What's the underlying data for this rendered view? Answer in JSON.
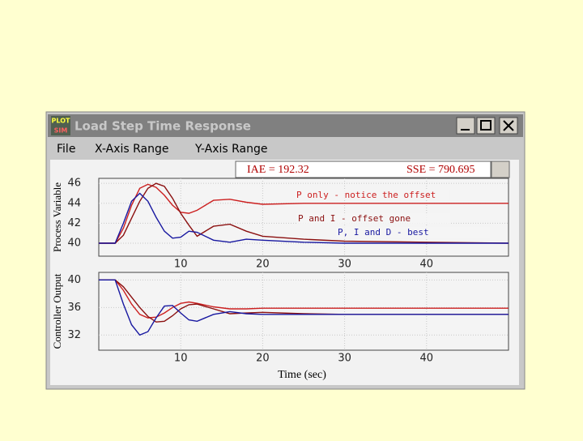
{
  "window": {
    "icon_text": [
      "PLOT",
      "SIM"
    ],
    "title": "Load Step Time Response",
    "menu": [
      "File",
      "X-Axis Range",
      "Y-Axis Range"
    ],
    "stats": [
      "IAE = 192.32",
      "SSE = 790.695"
    ]
  },
  "chart_data": [
    {
      "type": "line",
      "ylabel": "Process Variable",
      "x": [
        0,
        2,
        3,
        4,
        5,
        6,
        7,
        8,
        9,
        10,
        11,
        12,
        14,
        16,
        18,
        20,
        25,
        30,
        40,
        50
      ],
      "xlim": [
        0,
        50
      ],
      "xticks": [
        10,
        20,
        30,
        40
      ],
      "ylim": [
        38.7,
        46.5
      ],
      "yticks": [
        40,
        42,
        44,
        46
      ],
      "grid": true,
      "series": [
        {
          "color": "#cc2020",
          "values": [
            40,
            40,
            41.5,
            43.8,
            45.5,
            45.9,
            45.6,
            44.8,
            43.8,
            43.1,
            43.0,
            43.3,
            44.3,
            44.4,
            44.1,
            43.9,
            44.0,
            44.0,
            44.0,
            44.0
          ]
        },
        {
          "color": "#8b1010",
          "values": [
            40,
            40,
            40.8,
            42.5,
            44.2,
            45.5,
            46.0,
            45.7,
            44.5,
            43.0,
            41.8,
            40.7,
            41.7,
            41.9,
            41.2,
            40.7,
            40.4,
            40.2,
            40.1,
            40.0
          ]
        },
        {
          "color": "#1818a0",
          "values": [
            40,
            40,
            42.0,
            44.2,
            45.0,
            44.2,
            42.6,
            41.2,
            40.5,
            40.6,
            41.2,
            41.1,
            40.3,
            40.1,
            40.4,
            40.3,
            40.1,
            40.0,
            40.0,
            40.0
          ]
        }
      ],
      "annotations": [
        "P only - notice the offset",
        "P and I - offset gone",
        "P, I and D - best"
      ]
    },
    {
      "type": "line",
      "ylabel": "Controller Output",
      "xlabel": "Time (sec)",
      "x": [
        0,
        2,
        3,
        4,
        5,
        6,
        7,
        8,
        9,
        10,
        11,
        12,
        14,
        16,
        18,
        20,
        25,
        30,
        40,
        50
      ],
      "xlim": [
        0,
        50
      ],
      "xticks": [
        10,
        20,
        30,
        40
      ],
      "ylim": [
        29.8,
        41.1
      ],
      "yticks": [
        32,
        36,
        40
      ],
      "grid": true,
      "series": [
        {
          "color": "#cc2020",
          "values": [
            40,
            40,
            38.5,
            36.5,
            35.0,
            34.5,
            34.6,
            35.2,
            36.0,
            36.6,
            36.8,
            36.6,
            36.1,
            35.8,
            35.8,
            35.9,
            35.9,
            35.9,
            35.9,
            35.9
          ]
        },
        {
          "color": "#8b1010",
          "values": [
            40,
            40,
            39.0,
            37.5,
            36.0,
            34.7,
            33.9,
            34.0,
            34.8,
            35.8,
            36.4,
            36.5,
            35.8,
            35.1,
            35.2,
            35.3,
            35.1,
            35.0,
            35.0,
            35.0
          ]
        },
        {
          "color": "#1818a0",
          "values": [
            40,
            40,
            36.5,
            33.5,
            32.0,
            32.5,
            34.5,
            36.2,
            36.3,
            35.2,
            34.2,
            34.0,
            35.0,
            35.4,
            35.1,
            35.0,
            35.0,
            35.0,
            35.0,
            35.0
          ]
        }
      ]
    }
  ]
}
